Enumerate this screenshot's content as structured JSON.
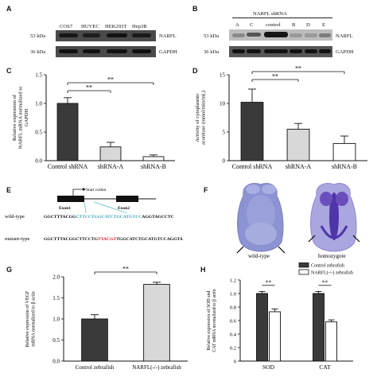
{
  "panels": {
    "A": {
      "label": "A",
      "lanes": [
        "COS7",
        "HUVEC",
        "HEK293T",
        "Hep3B"
      ],
      "rows": [
        {
          "size": "53 kDa",
          "protein": "NARFL"
        },
        {
          "size": "36 kDa",
          "protein": "GAPDH"
        }
      ]
    },
    "B": {
      "label": "B",
      "header": "NARFL shRNA",
      "lanes": [
        "A",
        "C",
        "control",
        "B",
        "D",
        "E"
      ],
      "rows": [
        {
          "size": "53 kDa",
          "protein": "NARFL"
        },
        {
          "size": "36 kDa",
          "protein": "GAPDH"
        }
      ]
    },
    "E": {
      "label": "E",
      "start_codon": "Start codon",
      "exon1": "Exon1",
      "exon2": "Exon2",
      "wild_label": "wild-type",
      "wild_seq_a": "GGCTTTACGG",
      "wild_seq_b": "CTTCCTGGCATCTGCATGTCC",
      "wild_seq_c": "AGGTAGCCTC",
      "mut_label": "mutant-type",
      "mut_seq_a": "GGCTTTACGGCTTCCTG",
      "mut_seq_b": "TTACGT",
      "mut_seq_c": "TGGCATCTGCATGTCCAGGTA"
    },
    "F": {
      "label": "F",
      "left_caption": "wild-type",
      "right_caption": "homozygote"
    }
  },
  "chart_data": [
    {
      "panel": "C",
      "type": "bar",
      "categories": [
        "Control shRNA",
        "shRNA-A",
        "shRNA-B"
      ],
      "values": [
        1.0,
        0.24,
        0.07
      ],
      "errors": [
        0.1,
        0.08,
        0.03
      ],
      "ylabel": "Relative expression of NARFL mRNA normalized to GAPDH",
      "ylim": [
        0,
        1.5
      ],
      "yticks": [
        "0.0",
        "0.5",
        "1.0",
        "1.5"
      ],
      "significance": [
        {
          "from": 0,
          "to": 1,
          "label": "**"
        },
        {
          "from": 0,
          "to": 2,
          "label": "**"
        }
      ],
      "colors": [
        "#3a3a3a",
        "#d8d8d8",
        "#ffffff"
      ]
    },
    {
      "panel": "D",
      "type": "bar",
      "categories": [
        "Control shRNA",
        "shRNA-A",
        "shRNA-B"
      ],
      "values": [
        10.2,
        5.5,
        3.0
      ],
      "errors": [
        2.3,
        1.0,
        1.3
      ],
      "ylabel": "Activity of cytoplasmic aconitase (mmol/min/mL)",
      "ylim": [
        0,
        15
      ],
      "yticks": [
        "0",
        "5",
        "10",
        "15"
      ],
      "significance": [
        {
          "from": 0,
          "to": 1,
          "label": "**"
        },
        {
          "from": 0,
          "to": 2,
          "label": "**"
        }
      ],
      "colors": [
        "#3a3a3a",
        "#d8d8d8",
        "#ffffff"
      ]
    },
    {
      "panel": "G",
      "type": "bar",
      "categories": [
        "Control zebrafish",
        "NARFL(-/-) zebrafish"
      ],
      "values": [
        1.0,
        1.82
      ],
      "errors": [
        0.1,
        0.05
      ],
      "ylabel": "Relative expression of VEGF mRNA normalized to β actin",
      "ylim": [
        0,
        2.0
      ],
      "yticks": [
        "0.0",
        "0.5",
        "1.0",
        "1.5",
        "2.0"
      ],
      "significance": [
        {
          "from": 0,
          "to": 1,
          "label": "**"
        }
      ],
      "colors": [
        "#3a3a3a",
        "#d8d8d8"
      ]
    },
    {
      "panel": "H",
      "type": "bar",
      "categories": [
        "SOD",
        "CAT"
      ],
      "series": [
        {
          "name": "Control zebrafish",
          "values": [
            1.0,
            1.0
          ],
          "errors": [
            0.03,
            0.03
          ],
          "color": "#3a3a3a"
        },
        {
          "name": "NARFL(-/-) zebrafish",
          "values": [
            0.73,
            0.58
          ],
          "errors": [
            0.04,
            0.03
          ],
          "color": "#ffffff"
        }
      ],
      "ylabel": "Relative expression of SOD and CAT mRNA normalized to β actin",
      "ylim": [
        0,
        1.2
      ],
      "yticks": [
        "0",
        "0.2",
        "0.4",
        "0.6",
        "0.8",
        "1.0",
        "1.2"
      ],
      "significance": [
        {
          "group": 0,
          "label": "**"
        },
        {
          "group": 1,
          "label": "**"
        }
      ],
      "legend": "top-right"
    }
  ]
}
